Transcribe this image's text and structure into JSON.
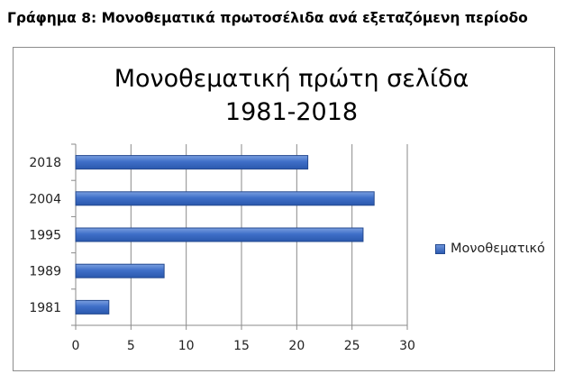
{
  "caption": "Γράφημα 8: Μονοθεματικά πρωτοσέλιδα ανά εξεταζόμενη περίοδο",
  "chart_data": {
    "type": "bar",
    "orientation": "horizontal",
    "title_line1": "Μονοθεματική πρώτη σελίδα",
    "title_line2": "1981-2018",
    "categories": [
      "2018",
      "2004",
      "1995",
      "1989",
      "1981"
    ],
    "series": [
      {
        "name": "Μονοθεματικό",
        "values": [
          21,
          27,
          26,
          8,
          3
        ]
      }
    ],
    "xlim": [
      0,
      30
    ],
    "xticks": [
      "0",
      "5",
      "10",
      "15",
      "20",
      "25",
      "30"
    ],
    "grid": "vertical",
    "legend_position": "right",
    "bar_color": "#3a6cc4"
  }
}
